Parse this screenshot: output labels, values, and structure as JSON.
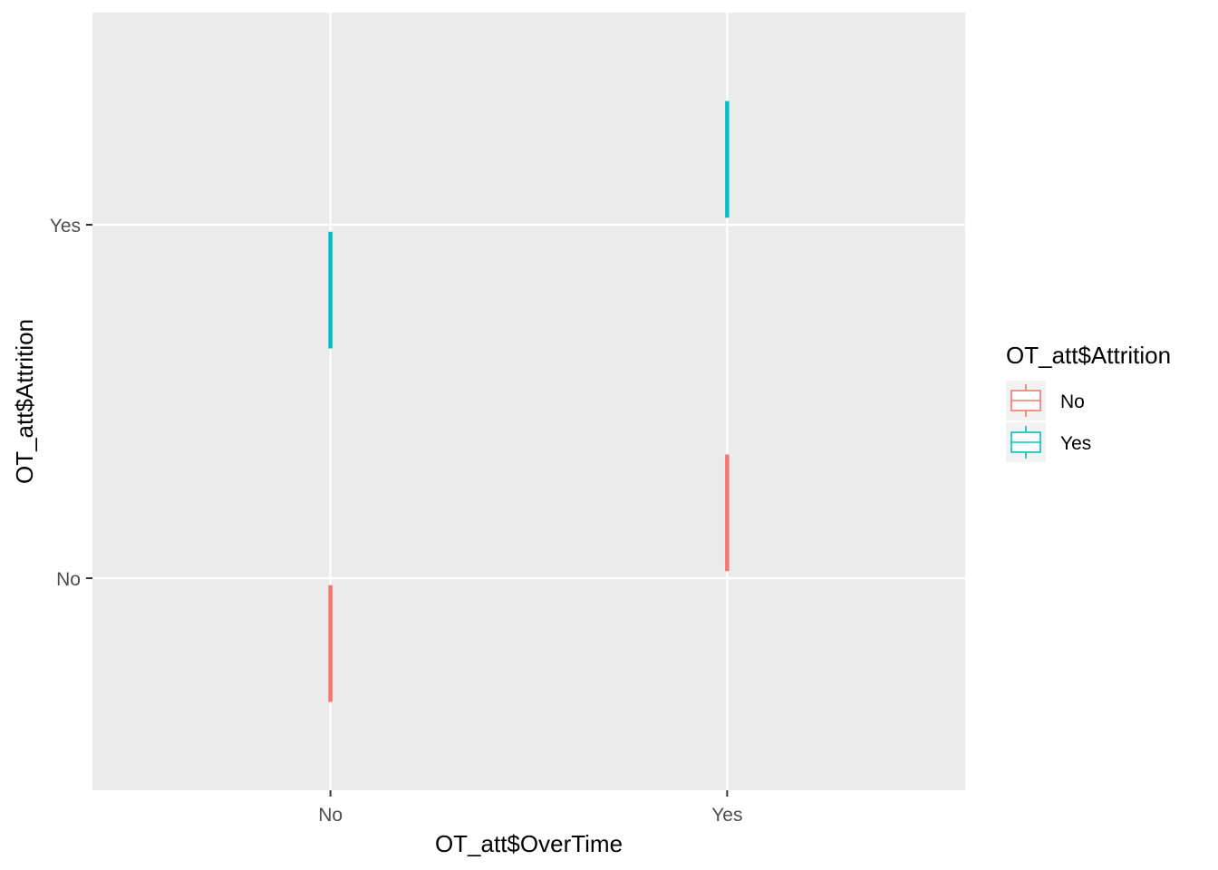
{
  "chart_data": {
    "type": "boxplot",
    "xlabel": "OT_att$OverTime",
    "ylabel": "OT_att$Attrition",
    "x_categories": [
      "No",
      "Yes"
    ],
    "y_categories": [
      "No",
      "Yes"
    ],
    "grid": true,
    "legend": {
      "title": "OT_att$Attrition",
      "placement": "right",
      "entries": [
        {
          "label": "No",
          "color": "#F8766D"
        },
        {
          "label": "Yes",
          "color": "#00BFC4"
        }
      ]
    },
    "boxes": [
      {
        "x": "No",
        "group": "No",
        "y_low": 0.65,
        "y_high": 0.98,
        "color": "#F8766D"
      },
      {
        "x": "No",
        "group": "Yes",
        "y_low": 1.65,
        "y_high": 1.98,
        "color": "#00BFC4"
      },
      {
        "x": "Yes",
        "group": "No",
        "y_low": 1.02,
        "y_high": 1.35,
        "color": "#F8766D"
      },
      {
        "x": "Yes",
        "group": "Yes",
        "y_low": 2.02,
        "y_high": 2.35,
        "color": "#00BFC4"
      }
    ],
    "panel_background": "#EBEBEB",
    "grid_color": "#FFFFFF"
  }
}
